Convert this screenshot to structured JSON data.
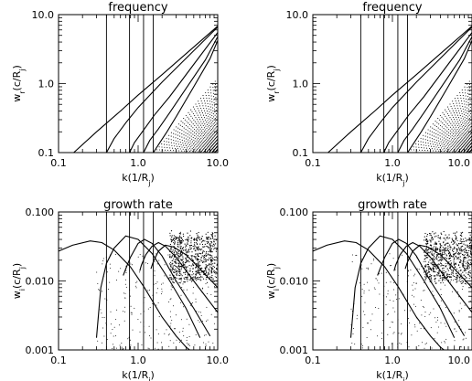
{
  "chart_data": [
    {
      "type": "line",
      "title": "frequency",
      "xlabel": "k(1/R",
      "xlabel_sub": "j",
      "xlabel_close": ")",
      "ylabel": "w",
      "ylabel_sub": "r",
      "ylabel_rest": "(c/R",
      "ylabel_sub2": "j",
      "ylabel_close": ")",
      "xscale": "log",
      "yscale": "log",
      "xlim": [
        0.1,
        10.0
      ],
      "ylim": [
        0.1,
        10.0
      ],
      "xticks": [
        {
          "v": 0.1,
          "label": "0.1"
        },
        {
          "v": 1.0,
          "label": "1.0"
        },
        {
          "v": 10.0,
          "label": "10.0"
        }
      ],
      "yticks": [
        {
          "v": 0.1,
          "label": "0.1"
        },
        {
          "v": 1.0,
          "label": "1.0"
        },
        {
          "v": 10.0,
          "label": "10.0"
        }
      ],
      "vlines": [
        0.4,
        0.78,
        1.17,
        1.55
      ],
      "series": [
        {
          "x": [
            0.155,
            0.3,
            0.6,
            1.0,
            2.0,
            5.0,
            10.0
          ],
          "y": [
            0.1,
            0.2,
            0.4,
            0.68,
            1.35,
            3.4,
            6.8
          ]
        },
        {
          "x": [
            0.4,
            0.5,
            0.7,
            1.0,
            2.0,
            5.0,
            10.0
          ],
          "y": [
            0.1,
            0.16,
            0.27,
            0.45,
            1.05,
            3.0,
            6.6
          ]
        },
        {
          "x": [
            0.78,
            0.9,
            1.2,
            1.6,
            2.5,
            5.0,
            10.0
          ],
          "y": [
            0.1,
            0.14,
            0.22,
            0.35,
            0.65,
            1.9,
            5.5
          ]
        },
        {
          "x": [
            1.17,
            1.4,
            1.8,
            2.5,
            4.0,
            7.0,
            10.0
          ],
          "y": [
            0.1,
            0.15,
            0.22,
            0.38,
            0.85,
            2.2,
            4.8
          ]
        },
        {
          "x": [
            1.55,
            1.8,
            2.3,
            3.0,
            5.0,
            8.0,
            10.0
          ],
          "y": [
            0.1,
            0.13,
            0.2,
            0.33,
            0.9,
            2.3,
            4.2
          ]
        }
      ],
      "dotted_band": {
        "x_start": 1.6,
        "x_end": 10.0,
        "y_low": 0.1,
        "y_high": 10.0
      }
    },
    {
      "type": "line",
      "title": "frequency",
      "xlabel": "k(1/R",
      "xlabel_sub": "j",
      "xlabel_close": ")",
      "ylabel": "w",
      "ylabel_sub": "r",
      "ylabel_rest": "(c/R",
      "ylabel_sub2": "j",
      "ylabel_close": ")",
      "xscale": "log",
      "yscale": "log",
      "xlim": [
        0.1,
        10.0
      ],
      "ylim": [
        0.1,
        10.0
      ],
      "xticks": [
        {
          "v": 0.1,
          "label": "0.1"
        },
        {
          "v": 1.0,
          "label": "1.0"
        },
        {
          "v": 10.0,
          "label": "10.0"
        }
      ],
      "yticks": [
        {
          "v": 0.1,
          "label": "0.1"
        },
        {
          "v": 1.0,
          "label": "1.0"
        },
        {
          "v": 10.0,
          "label": "10.0"
        }
      ],
      "vlines": [
        0.4,
        0.78,
        1.17,
        1.55
      ],
      "series": [
        {
          "x": [
            0.155,
            0.3,
            0.6,
            1.0,
            2.0,
            5.0,
            10.0
          ],
          "y": [
            0.1,
            0.2,
            0.4,
            0.68,
            1.35,
            3.4,
            6.8
          ]
        },
        {
          "x": [
            0.4,
            0.5,
            0.7,
            1.0,
            2.0,
            5.0,
            10.0
          ],
          "y": [
            0.1,
            0.16,
            0.27,
            0.45,
            1.05,
            3.0,
            6.6
          ]
        },
        {
          "x": [
            0.78,
            0.9,
            1.2,
            1.6,
            2.5,
            5.0,
            10.0
          ],
          "y": [
            0.1,
            0.14,
            0.22,
            0.35,
            0.65,
            1.9,
            5.5
          ]
        },
        {
          "x": [
            1.17,
            1.4,
            1.8,
            2.5,
            4.0,
            7.0,
            10.0
          ],
          "y": [
            0.1,
            0.15,
            0.22,
            0.38,
            0.85,
            2.2,
            4.8
          ]
        },
        {
          "x": [
            1.55,
            1.8,
            2.3,
            3.0,
            5.0,
            8.0,
            10.0
          ],
          "y": [
            0.1,
            0.13,
            0.2,
            0.33,
            0.9,
            2.3,
            4.2
          ]
        }
      ],
      "dotted_band": {
        "x_start": 1.6,
        "x_end": 10.0,
        "y_low": 0.1,
        "y_high": 10.0
      }
    },
    {
      "type": "line",
      "title": "growth rate",
      "xlabel": "k(1/R",
      "xlabel_sub": "j",
      "xlabel_close": ")",
      "ylabel": "w",
      "ylabel_sub": "i",
      "ylabel_rest": "(c/R",
      "ylabel_sub2": "j",
      "ylabel_close": ")",
      "xscale": "log",
      "yscale": "log",
      "xlim": [
        0.1,
        10.0
      ],
      "ylim": [
        0.001,
        0.1
      ],
      "xticks": [
        {
          "v": 0.1,
          "label": "0.1"
        },
        {
          "v": 1.0,
          "label": "1.0"
        },
        {
          "v": 10.0,
          "label": "10.0"
        }
      ],
      "yticks": [
        {
          "v": 0.001,
          "label": "0.001"
        },
        {
          "v": 0.01,
          "label": "0.010"
        },
        {
          "v": 0.1,
          "label": "0.100"
        }
      ],
      "vlines": [
        0.4,
        0.78,
        1.17,
        1.55
      ],
      "series": [
        {
          "x": [
            0.1,
            0.15,
            0.25,
            0.35,
            0.5,
            0.8,
            1.2,
            2.0,
            3.0,
            4.0,
            5.0
          ],
          "y": [
            0.027,
            0.033,
            0.038,
            0.036,
            0.028,
            0.016,
            0.008,
            0.003,
            0.0016,
            0.0011,
            0.0009
          ]
        },
        {
          "x": [
            0.3,
            0.34,
            0.4,
            0.5,
            0.7,
            1.0,
            1.5,
            2.5,
            4.0,
            6.0
          ],
          "y": [
            0.0015,
            0.008,
            0.018,
            0.03,
            0.045,
            0.04,
            0.025,
            0.01,
            0.004,
            0.0015
          ]
        },
        {
          "x": [
            0.65,
            0.7,
            0.8,
            1.0,
            1.2,
            1.5,
            2.0,
            3.0,
            5.0,
            8.0
          ],
          "y": [
            0.012,
            0.015,
            0.022,
            0.035,
            0.04,
            0.035,
            0.023,
            0.01,
            0.004,
            0.0016
          ]
        },
        {
          "x": [
            1.05,
            1.1,
            1.25,
            1.5,
            1.8,
            2.2,
            3.0,
            5.0,
            10.0
          ],
          "y": [
            0.014,
            0.017,
            0.024,
            0.032,
            0.036,
            0.032,
            0.022,
            0.01,
            0.0035
          ]
        },
        {
          "x": [
            1.45,
            1.55,
            1.8,
            2.2,
            2.8,
            4.0,
            6.0,
            10.0
          ],
          "y": [
            0.015,
            0.019,
            0.027,
            0.033,
            0.031,
            0.024,
            0.015,
            0.008
          ]
        }
      ],
      "dense_band": {
        "x_start": 2.5,
        "x_end": 10.0,
        "y_center": 0.022
      }
    },
    {
      "type": "line",
      "title": "growth rate",
      "xlabel": "k(1/R",
      "xlabel_sub": "j",
      "xlabel_close": ")",
      "ylabel": "w",
      "ylabel_sub": "i",
      "ylabel_rest": "(c/R",
      "ylabel_sub2": "j",
      "ylabel_close": ")",
      "xscale": "log",
      "yscale": "log",
      "xlim": [
        0.1,
        10.0
      ],
      "ylim": [
        0.001,
        0.1
      ],
      "xticks": [
        {
          "v": 0.1,
          "label": "0.1"
        },
        {
          "v": 1.0,
          "label": "1.0"
        },
        {
          "v": 10.0,
          "label": "10.0"
        }
      ],
      "yticks": [
        {
          "v": 0.001,
          "label": "0.001"
        },
        {
          "v": 0.01,
          "label": "0.010"
        },
        {
          "v": 0.1,
          "label": "0.100"
        }
      ],
      "vlines": [
        0.4,
        0.78,
        1.17,
        1.55
      ],
      "series": [
        {
          "x": [
            0.1,
            0.15,
            0.25,
            0.35,
            0.5,
            0.8,
            1.2,
            2.0,
            3.0,
            4.0,
            5.0
          ],
          "y": [
            0.027,
            0.033,
            0.038,
            0.036,
            0.028,
            0.016,
            0.008,
            0.003,
            0.0016,
            0.0011,
            0.0009
          ]
        },
        {
          "x": [
            0.3,
            0.34,
            0.4,
            0.5,
            0.7,
            1.0,
            1.5,
            2.5,
            4.0,
            6.0
          ],
          "y": [
            0.0015,
            0.008,
            0.018,
            0.03,
            0.045,
            0.04,
            0.025,
            0.01,
            0.004,
            0.0015
          ]
        },
        {
          "x": [
            0.65,
            0.7,
            0.8,
            1.0,
            1.2,
            1.5,
            2.0,
            3.0,
            5.0,
            8.0
          ],
          "y": [
            0.012,
            0.015,
            0.022,
            0.035,
            0.04,
            0.035,
            0.023,
            0.01,
            0.004,
            0.0016
          ]
        },
        {
          "x": [
            1.05,
            1.1,
            1.25,
            1.5,
            1.8,
            2.2,
            3.0,
            5.0,
            10.0
          ],
          "y": [
            0.014,
            0.017,
            0.024,
            0.032,
            0.036,
            0.032,
            0.022,
            0.01,
            0.0035
          ]
        },
        {
          "x": [
            1.45,
            1.55,
            1.8,
            2.2,
            2.8,
            4.0,
            6.0,
            10.0
          ],
          "y": [
            0.015,
            0.019,
            0.027,
            0.033,
            0.031,
            0.024,
            0.015,
            0.008
          ]
        }
      ],
      "dense_band": {
        "x_start": 2.5,
        "x_end": 10.0,
        "y_center": 0.022
      }
    }
  ]
}
